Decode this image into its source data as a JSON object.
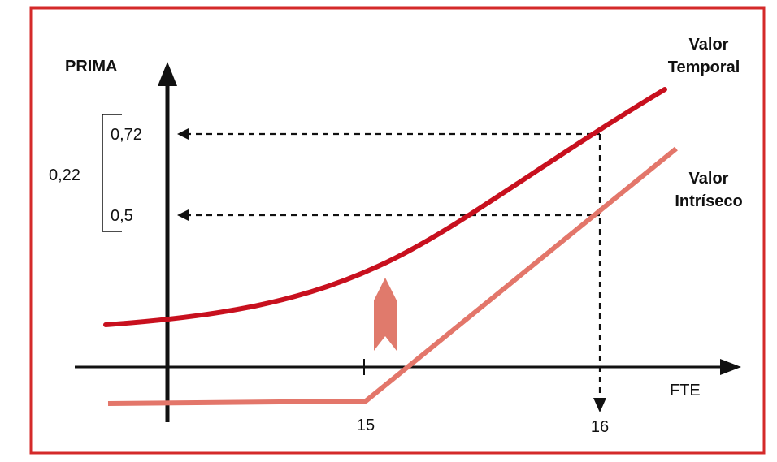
{
  "chart_data": {
    "type": "line",
    "ylabel": "PRIMA",
    "xlabel": "FTE",
    "x_ticks": [
      "15",
      "16"
    ],
    "y_ticks": [
      "0,72",
      "0,5"
    ],
    "bracket_label": "0,22",
    "series": [
      {
        "name": "Valor Temporal",
        "line1": "Valor",
        "line2": "Temporal",
        "color": "#c8101e"
      },
      {
        "name": "Valor Intríseco",
        "line1": "Valor",
        "line2": "Intríseco",
        "color": "#e3766a"
      }
    ],
    "colors": {
      "frame": "#d42a2a",
      "axis": "#111111",
      "arrow_marker": "#e07a6c"
    }
  }
}
